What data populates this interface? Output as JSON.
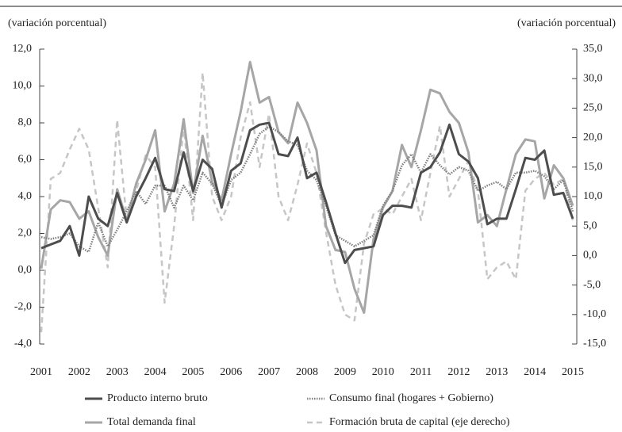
{
  "chart_data": {
    "type": "line",
    "y_label": "(variación porcentual)",
    "y2_label": "(variación porcentual)",
    "categories": [
      "2001",
      null,
      null,
      null,
      "2002",
      null,
      null,
      null,
      "2003",
      null,
      null,
      null,
      "2004",
      null,
      null,
      null,
      "2005",
      null,
      null,
      null,
      "2006",
      null,
      null,
      null,
      "2007",
      null,
      null,
      null,
      "2008",
      null,
      null,
      null,
      "2009",
      null,
      null,
      null,
      "2010",
      null,
      null,
      null,
      "2011",
      null,
      null,
      null,
      "2012",
      null,
      null,
      null,
      "2013",
      null,
      null,
      null,
      "2014",
      null,
      null,
      null,
      "2015"
    ],
    "series": [
      {
        "name": "Producto interno bruto",
        "color": "#4d4d4d",
        "dash": "none",
        "width": 3,
        "values": [
          1.2,
          1.4,
          1.6,
          2.4,
          0.8,
          4.0,
          2.8,
          2.4,
          4.2,
          2.6,
          4.0,
          5.0,
          6.1,
          4.4,
          4.3,
          6.4,
          4.3,
          6.0,
          5.5,
          3.4,
          5.4,
          5.8,
          7.6,
          7.9,
          8.0,
          6.3,
          6.2,
          7.2,
          5.0,
          5.3,
          3.7,
          2.0,
          0.4,
          1.1,
          1.2,
          1.3,
          3.0,
          3.5,
          3.5,
          3.4,
          5.3,
          5.6,
          6.4,
          7.9,
          6.3,
          5.9,
          5.0,
          2.5,
          2.8,
          2.8,
          4.4,
          6.1,
          6.0,
          6.5,
          4.1,
          4.2,
          2.8
        ]
      },
      {
        "name": "Consumo final (hogares + Gobierno)",
        "color": "#7f7f7f",
        "dash": "1.5 1.5",
        "width": 2.5,
        "values": [
          1.8,
          1.7,
          1.8,
          2.0,
          1.3,
          1.0,
          2.6,
          1.3,
          2.2,
          3.2,
          4.3,
          3.6,
          4.6,
          4.6,
          3.4,
          4.6,
          3.8,
          5.3,
          4.7,
          3.5,
          4.9,
          5.3,
          6.3,
          7.4,
          7.8,
          7.5,
          7.0,
          6.8,
          5.4,
          4.9,
          3.5,
          1.9,
          1.6,
          1.3,
          1.6,
          1.9,
          3.5,
          4.3,
          5.7,
          6.3,
          5.3,
          6.3,
          5.7,
          5.2,
          5.6,
          5.4,
          4.3,
          4.6,
          4.8,
          4.4,
          5.3,
          5.3,
          5.4,
          5.1,
          4.4,
          4.9,
          3.2
        ]
      },
      {
        "name": "Total demanda final",
        "color": "#a6a6a6",
        "dash": "none",
        "width": 3,
        "values": [
          0.1,
          3.3,
          3.8,
          3.7,
          2.8,
          3.2,
          1.8,
          0.8,
          4.4,
          2.7,
          4.7,
          6.0,
          7.6,
          3.2,
          4.7,
          8.2,
          4.2,
          7.3,
          4.8,
          3.8,
          6.3,
          8.6,
          11.3,
          9.1,
          9.4,
          7.5,
          6.9,
          9.1,
          8.0,
          6.5,
          2.4,
          1.1,
          1.0,
          -1.0,
          -2.3,
          1.7,
          3.4,
          4.3,
          6.8,
          5.6,
          7.6,
          9.8,
          9.6,
          8.6,
          8.0,
          6.4,
          2.6,
          3.0,
          2.4,
          4.4,
          6.3,
          7.1,
          7.0,
          3.9,
          5.7,
          5.0,
          3.5
        ]
      },
      {
        "name": "Formación bruta de capital (eje derecho)",
        "color": "#c6c6c6",
        "dash": "7 5",
        "width": 2.5,
        "axis": "y2",
        "values": [
          -13,
          13,
          14,
          18,
          21.5,
          18,
          8,
          -2,
          23,
          6,
          11,
          17,
          15,
          -8,
          5,
          22,
          6,
          31,
          10,
          6,
          10,
          20,
          26,
          15,
          24,
          10,
          6,
          12,
          19,
          14,
          4,
          -5,
          -10,
          -11,
          2,
          7,
          8,
          7,
          10,
          13,
          6,
          14,
          22,
          10,
          13,
          16,
          11,
          -4,
          -2,
          -1,
          -4,
          11,
          13,
          14,
          12,
          13,
          6
        ]
      }
    ],
    "ylim": [
      -4,
      12
    ],
    "yticks": [
      {
        "value": -4,
        "label": "-4,0"
      },
      {
        "value": -2,
        "label": "-2,0"
      },
      {
        "value": 0,
        "label": "0,0"
      },
      {
        "value": 2,
        "label": "2,0"
      },
      {
        "value": 4,
        "label": "4,0"
      },
      {
        "value": 6,
        "label": "6,0"
      },
      {
        "value": 8,
        "label": "8,0"
      },
      {
        "value": 10,
        "label": "10,0"
      },
      {
        "value": 12,
        "label": "12,0"
      }
    ],
    "y2lim": [
      -15,
      35
    ],
    "y2ticks": [
      {
        "value": -15,
        "label": "-15,0"
      },
      {
        "value": -10,
        "label": "-10,0"
      },
      {
        "value": -5,
        "label": "-5,0"
      },
      {
        "value": 0,
        "label": "0,0"
      },
      {
        "value": 5,
        "label": "5,0"
      },
      {
        "value": 10,
        "label": "10,0"
      },
      {
        "value": 15,
        "label": "15,0"
      },
      {
        "value": 20,
        "label": "20,0"
      },
      {
        "value": 25,
        "label": "25,0"
      },
      {
        "value": 30,
        "label": "30,0"
      },
      {
        "value": 35,
        "label": "35,0"
      }
    ]
  }
}
